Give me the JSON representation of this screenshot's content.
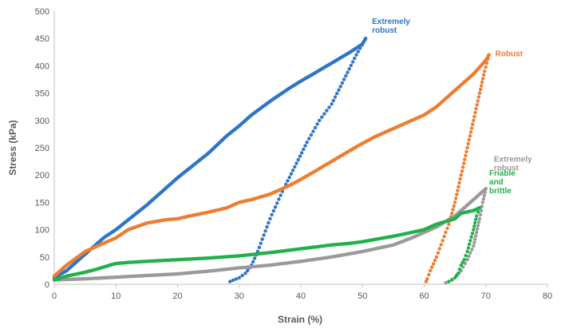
{
  "chart_data": {
    "type": "scatter",
    "xlabel": "Strain (%)",
    "ylabel": "Stress (kPa)",
    "xlim": [
      0,
      80
    ],
    "ylim": [
      0,
      500
    ],
    "xticks": [
      0,
      10,
      20,
      30,
      40,
      50,
      60,
      70,
      80
    ],
    "yticks": [
      0,
      50,
      100,
      150,
      200,
      250,
      300,
      350,
      400,
      450,
      500
    ],
    "grid": false,
    "legend": "direct labels near series ends",
    "series": [
      {
        "name": "Extremely robust",
        "label_lines": [
          "Extremely",
          "robust"
        ],
        "color": "#2e75c8",
        "loading": [
          [
            0,
            12
          ],
          [
            2,
            25
          ],
          [
            5,
            55
          ],
          [
            8,
            85
          ],
          [
            10,
            100
          ],
          [
            12,
            118
          ],
          [
            15,
            145
          ],
          [
            18,
            175
          ],
          [
            20,
            195
          ],
          [
            22,
            213
          ],
          [
            25,
            240
          ],
          [
            28,
            272
          ],
          [
            30,
            290
          ],
          [
            32,
            310
          ],
          [
            35,
            335
          ],
          [
            38,
            358
          ],
          [
            40,
            372
          ],
          [
            42,
            385
          ],
          [
            45,
            405
          ],
          [
            48,
            425
          ],
          [
            50,
            440
          ],
          [
            50.5,
            450
          ]
        ],
        "unloading": [
          [
            50.5,
            450
          ],
          [
            49,
            420
          ],
          [
            47,
            375
          ],
          [
            45,
            330
          ],
          [
            43,
            300
          ],
          [
            41,
            260
          ],
          [
            39,
            215
          ],
          [
            37,
            170
          ],
          [
            35,
            120
          ],
          [
            34,
            90
          ],
          [
            33,
            60
          ],
          [
            32,
            35
          ],
          [
            31,
            20
          ],
          [
            30,
            12
          ],
          [
            28.5,
            5
          ]
        ]
      },
      {
        "name": "Robust",
        "label_lines": [
          "Robust"
        ],
        "color": "#ed7d31",
        "loading": [
          [
            0,
            15
          ],
          [
            2,
            35
          ],
          [
            5,
            60
          ],
          [
            8,
            75
          ],
          [
            10,
            85
          ],
          [
            12,
            100
          ],
          [
            15,
            112
          ],
          [
            18,
            118
          ],
          [
            20,
            120
          ],
          [
            22,
            125
          ],
          [
            25,
            132
          ],
          [
            28,
            140
          ],
          [
            30,
            150
          ],
          [
            32,
            155
          ],
          [
            35,
            165
          ],
          [
            38,
            180
          ],
          [
            40,
            192
          ],
          [
            42,
            205
          ],
          [
            45,
            225
          ],
          [
            48,
            245
          ],
          [
            50,
            258
          ],
          [
            52,
            270
          ],
          [
            55,
            285
          ],
          [
            58,
            300
          ],
          [
            60,
            310
          ],
          [
            62,
            325
          ],
          [
            65,
            355
          ],
          [
            68,
            385
          ],
          [
            70,
            410
          ],
          [
            70.5,
            420
          ]
        ],
        "unloading": [
          [
            70.5,
            420
          ],
          [
            69.8,
            390
          ],
          [
            69,
            350
          ],
          [
            68,
            300
          ],
          [
            67,
            250
          ],
          [
            66,
            200
          ],
          [
            65,
            150
          ],
          [
            64,
            110
          ],
          [
            63,
            80
          ],
          [
            62,
            50
          ],
          [
            61,
            25
          ],
          [
            60.5,
            10
          ],
          [
            60.3,
            5
          ]
        ]
      },
      {
        "name": "Extremely robust",
        "label_lines": [
          "Extremely",
          "robust"
        ],
        "color": "#9a9a9a",
        "loading": [
          [
            0,
            8
          ],
          [
            5,
            10
          ],
          [
            10,
            13
          ],
          [
            15,
            16
          ],
          [
            20,
            19
          ],
          [
            25,
            24
          ],
          [
            30,
            30
          ],
          [
            35,
            35
          ],
          [
            40,
            42
          ],
          [
            45,
            50
          ],
          [
            50,
            60
          ],
          [
            55,
            72
          ],
          [
            58,
            85
          ],
          [
            60,
            95
          ],
          [
            62,
            105
          ],
          [
            65,
            125
          ],
          [
            67,
            145
          ],
          [
            68,
            155
          ],
          [
            70,
            175
          ]
        ],
        "unloading": [
          [
            70,
            175
          ],
          [
            69.5,
            150
          ],
          [
            69,
            120
          ],
          [
            68.5,
            95
          ],
          [
            68,
            70
          ],
          [
            67,
            45
          ],
          [
            66,
            25
          ],
          [
            65,
            12
          ],
          [
            64,
            5
          ],
          [
            63.5,
            3
          ]
        ]
      },
      {
        "name": "Friable and brittle",
        "label_lines": [
          "Friable",
          "and",
          "brittle"
        ],
        "color": "#22b04b",
        "loading": [
          [
            0,
            8
          ],
          [
            2,
            15
          ],
          [
            5,
            22
          ],
          [
            7,
            28
          ],
          [
            9,
            35
          ],
          [
            10,
            38
          ],
          [
            12,
            40
          ],
          [
            15,
            42
          ],
          [
            20,
            45
          ],
          [
            25,
            48
          ],
          [
            30,
            52
          ],
          [
            35,
            58
          ],
          [
            40,
            65
          ],
          [
            45,
            72
          ],
          [
            48,
            75
          ],
          [
            50,
            78
          ],
          [
            55,
            88
          ],
          [
            58,
            95
          ],
          [
            60,
            100
          ],
          [
            62,
            110
          ],
          [
            65,
            120
          ],
          [
            66,
            130
          ],
          [
            68,
            135
          ],
          [
            69,
            140
          ]
        ],
        "unloading": [
          [
            69,
            140
          ],
          [
            68.5,
            125
          ],
          [
            68,
            100
          ],
          [
            67.5,
            80
          ],
          [
            67,
            60
          ],
          [
            66.5,
            45
          ],
          [
            66,
            35
          ],
          [
            65.5,
            20
          ],
          [
            65,
            12
          ],
          [
            64.5,
            8
          ],
          [
            64,
            5
          ]
        ]
      }
    ]
  }
}
